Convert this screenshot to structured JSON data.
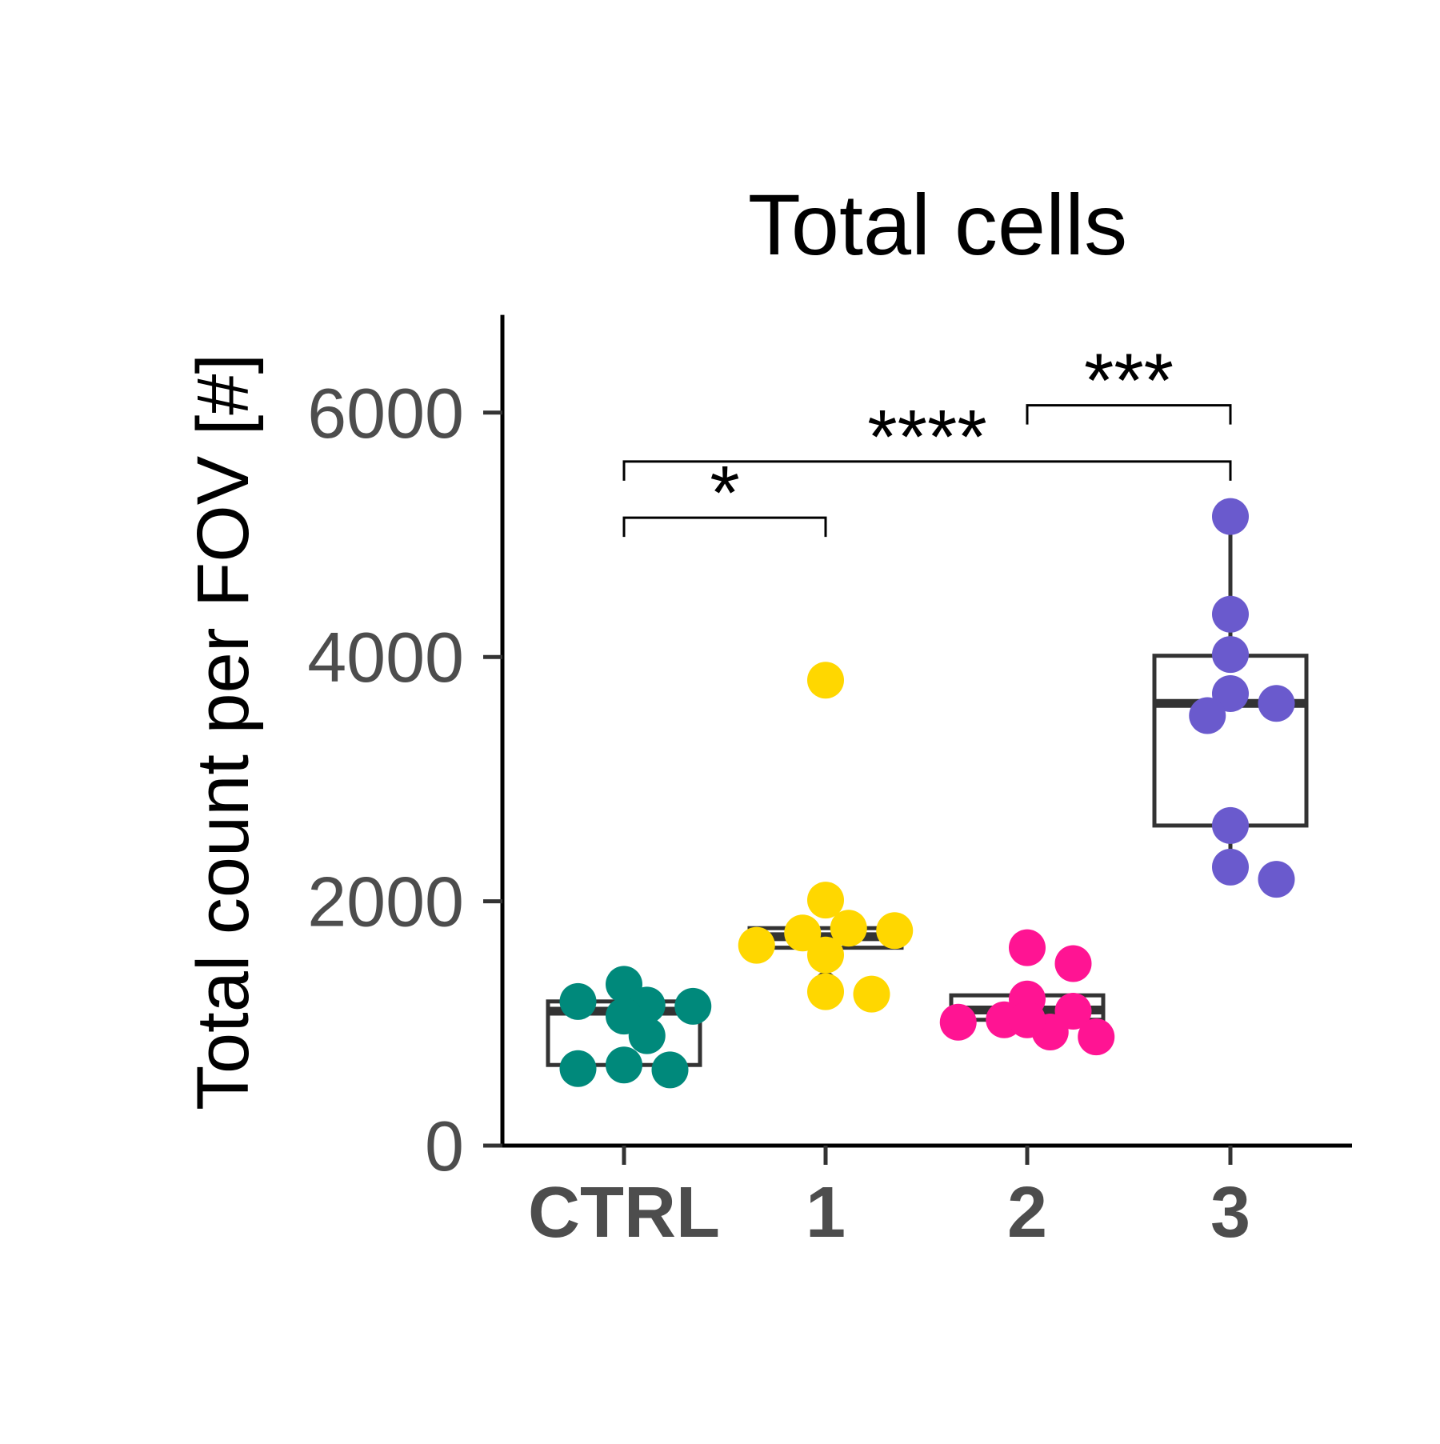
{
  "chart_data": {
    "type": "boxplot",
    "title": "Total cells",
    "xlabel": "",
    "ylabel": "Total count per FOV [#]",
    "ylim": [
      0,
      6800
    ],
    "yticks": [
      0,
      2000,
      4000,
      6000
    ],
    "ytick_labels": [
      "0",
      "2000",
      "4000",
      "6000"
    ],
    "grid": false,
    "legend": "none",
    "categories": [
      "CTRL",
      "1",
      "2",
      "3"
    ],
    "groups": [
      {
        "name": "CTRL",
        "color": "#00897B",
        "box": {
          "q1": 660,
          "median": 1100,
          "q3": 1180,
          "whisker_low": 660,
          "whisker_high": 1180
        },
        "points": [
          1320,
          1150,
          1180,
          1140,
          1060,
          900,
          660,
          620,
          630
        ]
      },
      {
        "name": "1",
        "color": "#FFD700",
        "box": {
          "q1": 1620,
          "median": 1710,
          "q3": 1780,
          "whisker_low": 1620,
          "whisker_high": 1780
        },
        "outliers": [
          1340
        ],
        "points": [
          3810,
          2010,
          1780,
          1740,
          1760,
          1640,
          1560,
          1260,
          1240
        ]
      },
      {
        "name": "2",
        "color": "#FF1493",
        "box": {
          "q1": 1030,
          "median": 1110,
          "q3": 1230,
          "whisker_low": 1030,
          "whisker_high": 1230
        },
        "outliers": [
          1630
        ],
        "points": [
          1620,
          1490,
          1200,
          1100,
          1030,
          1010,
          930,
          890,
          1030
        ]
      },
      {
        "name": "3",
        "color": "#6A5ACD",
        "box": {
          "q1": 2620,
          "median": 3620,
          "q3": 4010,
          "whisker_low": 2180,
          "whisker_high": 5150
        },
        "points": [
          5150,
          4350,
          4020,
          3700,
          3620,
          3520,
          2620,
          2280,
          2180
        ]
      }
    ],
    "significance": [
      {
        "from": "CTRL",
        "to": "1",
        "y": 5140,
        "label": "*"
      },
      {
        "from": "CTRL",
        "to": "3",
        "y": 5600,
        "label": "****"
      },
      {
        "from": "2",
        "to": "3",
        "y": 6060,
        "label": "***"
      }
    ]
  }
}
